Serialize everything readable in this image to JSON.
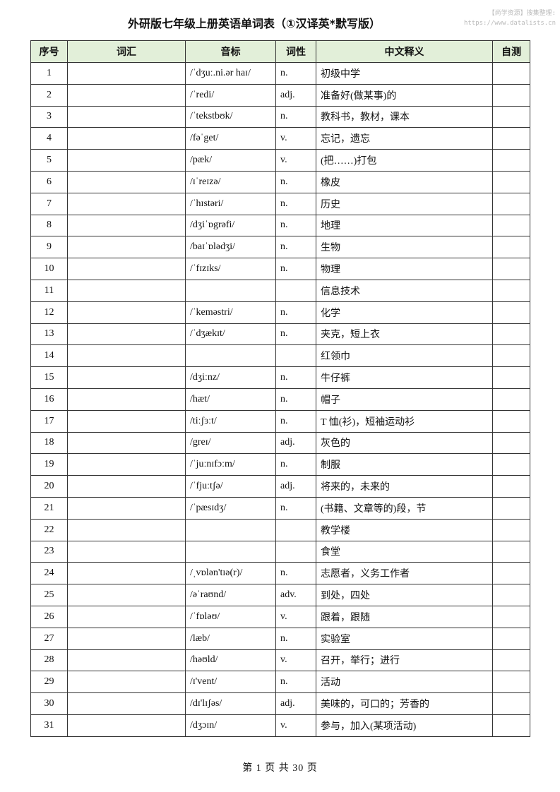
{
  "title": "外研版七年级上册英语单词表（①汉译英*默写版）",
  "watermark": {
    "line1": "【尚学资源】搜集整理:",
    "line2": "https://www.datalists.cn"
  },
  "headers": [
    "序号",
    "词汇",
    "音标",
    "词性",
    "中文释义",
    "自测"
  ],
  "rows": [
    [
      "1",
      "",
      "/ˈdʒuː.ni.ər haɪ/",
      "n.",
      "初级中学",
      ""
    ],
    [
      "2",
      "",
      "/ˈredi/",
      "adj.",
      "准备好(做某事)的",
      ""
    ],
    [
      "3",
      "",
      "/ˈtekstbʊk/",
      "n.",
      "教科书，教材，课本",
      ""
    ],
    [
      "4",
      "",
      "/fəˈget/",
      "v.",
      "忘记，遗忘",
      ""
    ],
    [
      "5",
      "",
      "/pæk/",
      "v.",
      "(把……)打包",
      ""
    ],
    [
      "6",
      "",
      "/ɪˈreɪzə/",
      "n.",
      "橡皮",
      ""
    ],
    [
      "7",
      "",
      "/ˈhɪstəri/",
      "n.",
      "历史",
      ""
    ],
    [
      "8",
      "",
      "/dʒiˈɒgrəfi/",
      "n.",
      "地理",
      ""
    ],
    [
      "9",
      "",
      "/baɪˈɒlədʒi/",
      "n.",
      "生物",
      ""
    ],
    [
      "10",
      "",
      "/ˈfɪzɪks/",
      "n.",
      "物理",
      ""
    ],
    [
      "11",
      "",
      "",
      "",
      "信息技术",
      ""
    ],
    [
      "12",
      "",
      "/ˈkeməstri/",
      "n.",
      "化学",
      ""
    ],
    [
      "13",
      "",
      "/ˈdʒækɪt/",
      "n.",
      "夹克，短上衣",
      ""
    ],
    [
      "14",
      "",
      "",
      "",
      "红领巾",
      ""
    ],
    [
      "15",
      "",
      "/dʒiːnz/",
      "n.",
      "牛仔裤",
      ""
    ],
    [
      "16",
      "",
      "/hæt/",
      "n.",
      "帽子",
      ""
    ],
    [
      "17",
      "",
      "/tiːʃɜːt/",
      "n.",
      "T 恤(衫)，短袖运动衫",
      ""
    ],
    [
      "18",
      "",
      "/greɪ/",
      "adj.",
      "灰色的",
      ""
    ],
    [
      "19",
      "",
      "/ˈjuːnɪfɔːm/",
      "n.",
      "制服",
      ""
    ],
    [
      "20",
      "",
      "/ˈfjuːtʃə/",
      "adj.",
      "将来的，未来的",
      ""
    ],
    [
      "21",
      "",
      "/ˈpæsɪdʒ/",
      "n.",
      "(书籍、文章等的)段，节",
      ""
    ],
    [
      "22",
      "",
      "",
      "",
      "教学楼",
      ""
    ],
    [
      "23",
      "",
      "",
      "",
      "食堂",
      ""
    ],
    [
      "24",
      "",
      "/ˌvɒlən'tɪə(r)/",
      "n.",
      "志愿者，义务工作者",
      ""
    ],
    [
      "25",
      "",
      "/əˈraʊnd/",
      "adv.",
      "到处，四处",
      ""
    ],
    [
      "26",
      "",
      "/ˈfɒləʊ/",
      "v.",
      "跟着，跟随",
      ""
    ],
    [
      "27",
      "",
      "/læb/",
      "n.",
      "实验室",
      ""
    ],
    [
      "28",
      "",
      "/həʊld/",
      "v.",
      "召开，举行；进行",
      ""
    ],
    [
      "29",
      "",
      "/ɪ'vent/",
      "n.",
      "活动",
      ""
    ],
    [
      "30",
      "",
      "/dɪ'lɪʃəs/",
      "adj.",
      "美味的，可口的；芳香的",
      ""
    ],
    [
      "31",
      "",
      "/dʒɔɪn/",
      "v.",
      "参与，加入(某项活动)",
      ""
    ]
  ],
  "footer": "第 1 页 共 30 页"
}
